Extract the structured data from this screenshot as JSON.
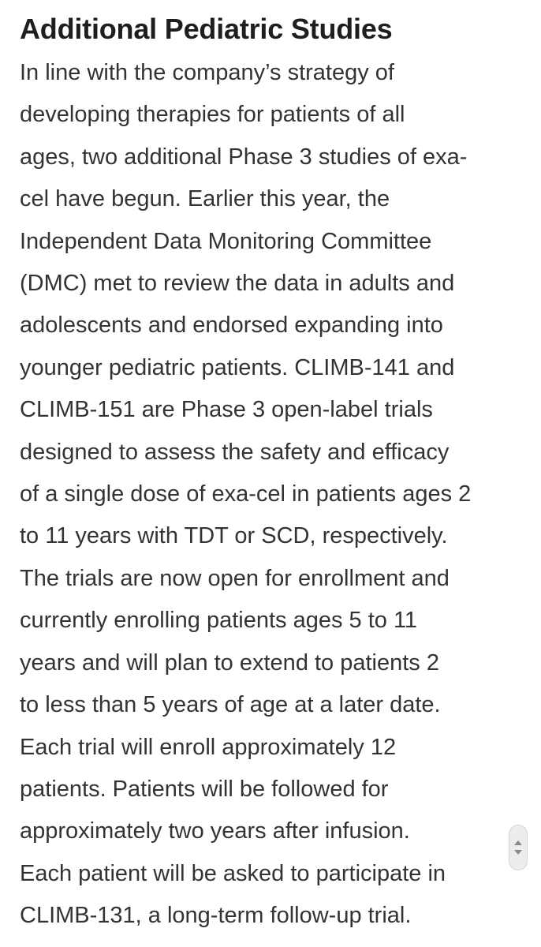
{
  "article": {
    "heading": "Additional Pediatric Studies",
    "body_lines": [
      "In line with the company’s strategy of",
      "developing therapies for patients of all",
      "ages, two additional Phase 3 studies of exa-",
      "cel have begun. Earlier this year, the",
      "Independent Data Monitoring Committee",
      "(DMC) met to review the data in adults and",
      "adolescents and endorsed expanding into",
      "younger pediatric patients. CLIMB-141 and",
      "CLIMB-151 are Phase 3 open-label trials",
      "designed to assess the safety and efficacy",
      "of a single dose of exa-cel in patients ages 2",
      "to 11 years with TDT or SCD, respectively.",
      "The trials are now open for enrollment and",
      "currently enrolling patients ages 5 to 11",
      "years and will plan to extend to patients 2",
      "to less than 5 years of age at a later date.",
      "Each trial will enroll approximately 12",
      "patients. Patients will be followed for",
      "approximately two years after infusion.",
      "Each patient will be asked to participate in",
      "CLIMB-131, a long-term follow-up trial."
    ]
  },
  "scroll_handle": {
    "up_icon": "chevron-up-icon",
    "down_icon": "chevron-down-icon"
  }
}
